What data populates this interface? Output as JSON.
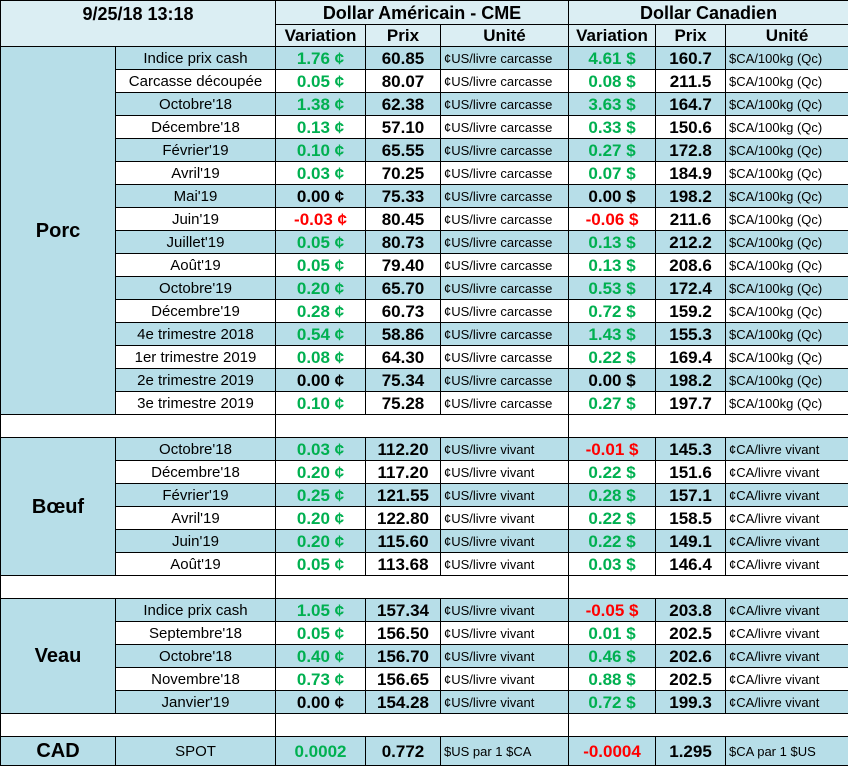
{
  "header": {
    "timestamp": "9/25/18 13:18",
    "usd_title": "Dollar Américain - CME",
    "cad_title": "Dollar Canadien",
    "columns": [
      "Variation",
      "Prix",
      "Unité",
      "Variation",
      "Prix",
      "Unité"
    ]
  },
  "variation_colors": {
    "positive": "#00b050",
    "negative": "#ff0000",
    "zero": "#000000"
  },
  "sections": [
    {
      "name": "Porc",
      "rows": [
        [
          "Indice prix cash",
          "1.76 ¢",
          "60.85",
          "¢US/livre carcasse",
          "4.61 $",
          "160.7",
          "$CA/100kg (Qc)"
        ],
        [
          "Carcasse découpée",
          "0.05 ¢",
          "80.07",
          "¢US/livre carcasse",
          "0.08 $",
          "211.5",
          "$CA/100kg (Qc)"
        ],
        [
          "Octobre'18",
          "1.38 ¢",
          "62.38",
          "¢US/livre carcasse",
          "3.63 $",
          "164.7",
          "$CA/100kg (Qc)"
        ],
        [
          "Décembre'18",
          "0.13 ¢",
          "57.10",
          "¢US/livre carcasse",
          "0.33 $",
          "150.6",
          "$CA/100kg (Qc)"
        ],
        [
          "Février'19",
          "0.10 ¢",
          "65.55",
          "¢US/livre carcasse",
          "0.27 $",
          "172.8",
          "$CA/100kg (Qc)"
        ],
        [
          "Avril'19",
          "0.03 ¢",
          "70.25",
          "¢US/livre carcasse",
          "0.07 $",
          "184.9",
          "$CA/100kg (Qc)"
        ],
        [
          "Mai'19",
          "0.00 ¢",
          "75.33",
          "¢US/livre carcasse",
          "0.00 $",
          "198.2",
          "$CA/100kg (Qc)"
        ],
        [
          "Juin'19",
          "-0.03 ¢",
          "80.45",
          "¢US/livre carcasse",
          "-0.06 $",
          "211.6",
          "$CA/100kg (Qc)"
        ],
        [
          "Juillet'19",
          "0.05 ¢",
          "80.73",
          "¢US/livre carcasse",
          "0.13 $",
          "212.2",
          "$CA/100kg (Qc)"
        ],
        [
          "Août'19",
          "0.05 ¢",
          "79.40",
          "¢US/livre carcasse",
          "0.13 $",
          "208.6",
          "$CA/100kg (Qc)"
        ],
        [
          "Octobre'19",
          "0.20 ¢",
          "65.70",
          "¢US/livre carcasse",
          "0.53 $",
          "172.4",
          "$CA/100kg (Qc)"
        ],
        [
          "Décembre'19",
          "0.28 ¢",
          "60.73",
          "¢US/livre carcasse",
          "0.72 $",
          "159.2",
          "$CA/100kg (Qc)"
        ],
        [
          "4e trimestre 2018",
          "0.54 ¢",
          "58.86",
          "¢US/livre carcasse",
          "1.43 $",
          "155.3",
          "$CA/100kg (Qc)"
        ],
        [
          "1er trimestre 2019",
          "0.08 ¢",
          "64.30",
          "¢US/livre carcasse",
          "0.22 $",
          "169.4",
          "$CA/100kg (Qc)"
        ],
        [
          "2e trimestre 2019",
          "0.00 ¢",
          "75.34",
          "¢US/livre carcasse",
          "0.00 $",
          "198.2",
          "$CA/100kg (Qc)"
        ],
        [
          "3e trimestre 2019",
          "0.10 ¢",
          "75.28",
          "¢US/livre carcasse",
          "0.27 $",
          "197.7",
          "$CA/100kg (Qc)"
        ]
      ]
    },
    {
      "name": "Bœuf",
      "rows": [
        [
          "Octobre'18",
          "0.03 ¢",
          "112.20",
          "¢US/livre vivant",
          "-0.01 $",
          "145.3",
          "¢CA/livre vivant"
        ],
        [
          "Décembre'18",
          "0.20 ¢",
          "117.20",
          "¢US/livre vivant",
          "0.22 $",
          "151.6",
          "¢CA/livre vivant"
        ],
        [
          "Février'19",
          "0.25 ¢",
          "121.55",
          "¢US/livre vivant",
          "0.28 $",
          "157.1",
          "¢CA/livre vivant"
        ],
        [
          "Avril'19",
          "0.20 ¢",
          "122.80",
          "¢US/livre vivant",
          "0.22 $",
          "158.5",
          "¢CA/livre vivant"
        ],
        [
          "Juin'19",
          "0.20 ¢",
          "115.60",
          "¢US/livre vivant",
          "0.22 $",
          "149.1",
          "¢CA/livre vivant"
        ],
        [
          "Août'19",
          "0.05 ¢",
          "113.68",
          "¢US/livre vivant",
          "0.03 $",
          "146.4",
          "¢CA/livre vivant"
        ]
      ]
    },
    {
      "name": "Veau",
      "rows": [
        [
          "Indice prix cash",
          "1.05 ¢",
          "157.34",
          "¢US/livre vivant",
          "-0.05 $",
          "203.8",
          "¢CA/livre vivant"
        ],
        [
          "Septembre'18",
          "0.05 ¢",
          "156.50",
          "¢US/livre vivant",
          "0.01 $",
          "202.5",
          "¢CA/livre vivant"
        ],
        [
          "Octobre'18",
          "0.40 ¢",
          "156.70",
          "¢US/livre vivant",
          "0.46 $",
          "202.6",
          "¢CA/livre vivant"
        ],
        [
          "Novembre'18",
          "0.73 ¢",
          "156.65",
          "¢US/livre vivant",
          "0.88 $",
          "202.5",
          "¢CA/livre vivant"
        ],
        [
          "Janvier'19",
          "0.00 ¢",
          "154.28",
          "¢US/livre vivant",
          "0.72 $",
          "199.3",
          "¢CA/livre vivant"
        ]
      ]
    },
    {
      "name": "CAD",
      "rows": [
        [
          "SPOT",
          "0.0002",
          "0.772",
          "$US par 1 $CA",
          "-0.0004",
          "1.295",
          "$CA par 1 $US"
        ]
      ]
    }
  ]
}
